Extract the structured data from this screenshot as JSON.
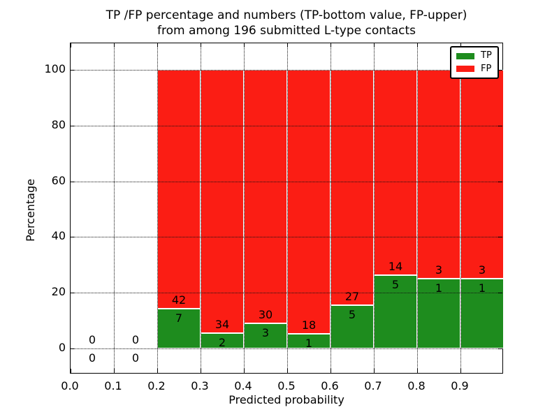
{
  "title": {
    "line1": "TP /FP percentage and numbers (TP-bottom value, FP-upper)",
    "line2": "from among 196 submitted L-type contacts"
  },
  "chart_data": {
    "type": "bar",
    "stacked": true,
    "title": "TP /FP percentage and numbers (TP-bottom value, FP-upper) from among 196 submitted L-type contacts",
    "xlabel": "Predicted probability",
    "ylabel": "Percentage",
    "xlim": [
      0.0,
      1.0
    ],
    "ylim": [
      -9.3,
      109.8
    ],
    "xticks": [
      "0.0",
      "0.1",
      "0.2",
      "0.3",
      "0.4",
      "0.5",
      "0.6",
      "0.7",
      "0.8",
      "0.9"
    ],
    "xtick_values": [
      0.0,
      0.1,
      0.2,
      0.3,
      0.4,
      0.5,
      0.6,
      0.7,
      0.8,
      0.9
    ],
    "yticks": [
      0,
      20,
      40,
      60,
      80,
      100
    ],
    "grid": "dotted",
    "bin_width": 0.1,
    "total_contacts": 196,
    "bins": [
      {
        "range": [
          0.0,
          0.1
        ],
        "tp": 0,
        "fp": 0,
        "tp_pct": 0,
        "fp_pct": 0
      },
      {
        "range": [
          0.1,
          0.2
        ],
        "tp": 0,
        "fp": 0,
        "tp_pct": 0,
        "fp_pct": 0
      },
      {
        "range": [
          0.2,
          0.3
        ],
        "tp": 7,
        "fp": 42,
        "tp_pct": 14.29,
        "fp_pct": 85.71
      },
      {
        "range": [
          0.3,
          0.4
        ],
        "tp": 2,
        "fp": 34,
        "tp_pct": 5.56,
        "fp_pct": 94.44
      },
      {
        "range": [
          0.4,
          0.5
        ],
        "tp": 3,
        "fp": 30,
        "tp_pct": 9.09,
        "fp_pct": 90.91
      },
      {
        "range": [
          0.5,
          0.6
        ],
        "tp": 1,
        "fp": 18,
        "tp_pct": 5.26,
        "fp_pct": 94.74
      },
      {
        "range": [
          0.6,
          0.7
        ],
        "tp": 5,
        "fp": 27,
        "tp_pct": 15.63,
        "fp_pct": 84.37
      },
      {
        "range": [
          0.7,
          0.8
        ],
        "tp": 5,
        "fp": 14,
        "tp_pct": 26.32,
        "fp_pct": 73.68
      },
      {
        "range": [
          0.8,
          0.9
        ],
        "tp": 1,
        "fp": 3,
        "tp_pct": 25.0,
        "fp_pct": 75.0
      },
      {
        "range": [
          0.9,
          1.0
        ],
        "tp": 1,
        "fp": 3,
        "tp_pct": 25.0,
        "fp_pct": 75.0
      }
    ],
    "legend": {
      "position": "upper right",
      "entries": [
        {
          "label": "TP",
          "color": "#1e8c1e"
        },
        {
          "label": "FP",
          "color": "#fb1d14"
        }
      ]
    },
    "colors": {
      "tp": "#1e8c1e",
      "fp": "#fb1d14",
      "grid": "#111111",
      "axis": "#000000",
      "background": "#ffffff"
    }
  }
}
